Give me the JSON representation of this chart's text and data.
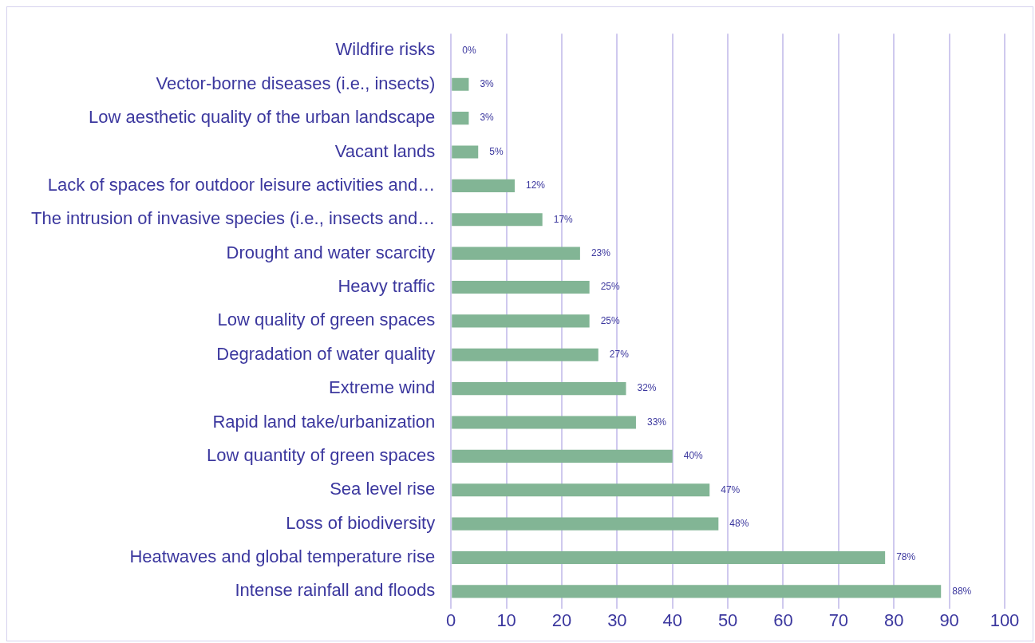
{
  "chart_data": {
    "type": "bar",
    "orientation": "horizontal",
    "categories": [
      "Wildfire risks",
      "Vector-borne diseases (i.e., insects)",
      "Low aesthetic quality of the urban landscape",
      "Vacant lands",
      "Lack of spaces for outdoor leisure activities and…",
      "The intrusion of invasive species (i.e., insects and…",
      "Drought and water scarcity",
      "Heavy traffic",
      "Low quality of green spaces",
      "Degradation of water quality",
      "Extreme wind",
      "Rapid land take/urbanization",
      "Low quantity of green spaces",
      "Sea level rise",
      "Loss of biodiversity",
      "Heatwaves and global temperature rise",
      "Intense rainfall and floods"
    ],
    "values": [
      0,
      3.2,
      3.2,
      4.9,
      11.5,
      16.5,
      23.3,
      25,
      25,
      26.6,
      31.6,
      33.4,
      40,
      46.7,
      48.3,
      78.4,
      88.5
    ],
    "value_labels": [
      "0%",
      "3%",
      "3%",
      "5%",
      "12%",
      "17%",
      "23%",
      "25%",
      "25%",
      "27%",
      "32%",
      "33%",
      "40%",
      "47%",
      "48%",
      "78%",
      "88%"
    ],
    "color": "#82b595",
    "xlim": [
      0,
      100
    ],
    "xticks": [
      0,
      10,
      20,
      30,
      40,
      50,
      60,
      70,
      80,
      90,
      100
    ],
    "grid": "x",
    "legend": false
  }
}
